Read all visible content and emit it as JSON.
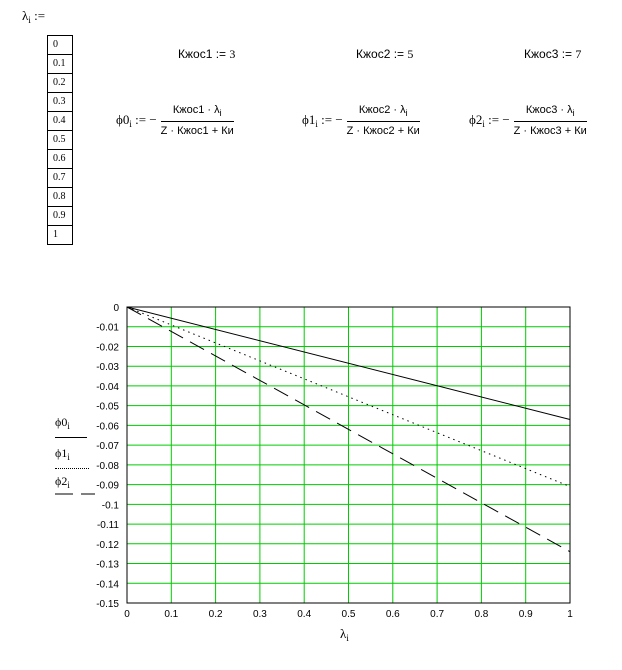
{
  "vector": {
    "header_symbol": "λ",
    "header_sub": "i",
    "header_assign": ":=",
    "values": [
      "0",
      "0.1",
      "0.2",
      "0.3",
      "0.4",
      "0.5",
      "0.6",
      "0.7",
      "0.8",
      "0.9",
      "1"
    ]
  },
  "constants": [
    {
      "name": "Кжос1",
      "assign": ":=",
      "value": "3"
    },
    {
      "name": "Кжос2",
      "assign": ":=",
      "value": "5"
    },
    {
      "name": "Кжос3",
      "assign": ":=",
      "value": "7"
    }
  ],
  "formulas": [
    {
      "lhs": "ϕ0",
      "sub": "i",
      "assign": ":=",
      "minus": "−",
      "num": "Кжос1 · λ",
      "num_sub": "i",
      "den": "Z · Кжос1 + Ки"
    },
    {
      "lhs": "ϕ1",
      "sub": "i",
      "assign": ":=",
      "minus": "−",
      "num": "Кжос2 · λ",
      "num_sub": "i",
      "den": "Z · Кжос2 + Ки"
    },
    {
      "lhs": "ϕ2",
      "sub": "i",
      "assign": ":=",
      "minus": "−",
      "num": "Кжос3 · λ",
      "num_sub": "i",
      "den": "Z · Кжос3 + Ки"
    }
  ],
  "chart_data": {
    "type": "line",
    "x": [
      0,
      1
    ],
    "xlim": [
      0,
      1
    ],
    "ylim": [
      -0.15,
      0
    ],
    "x_ticks": [
      "0",
      "0.1",
      "0.2",
      "0.3",
      "0.4",
      "0.5",
      "0.6",
      "0.7",
      "0.8",
      "0.9",
      "1"
    ],
    "y_ticks": [
      "0",
      "-0.01",
      "-0.02",
      "-0.03",
      "-0.04",
      "-0.05",
      "-0.06",
      "-0.07",
      "-0.08",
      "-0.09",
      "-0.1",
      "-0.11",
      "-0.12",
      "-0.13",
      "-0.14",
      "-0.15"
    ],
    "xlabel": "λ",
    "xlabel_sub": "i",
    "grid": true,
    "grid_color": "#00cc00",
    "series": [
      {
        "name": "ϕ0",
        "name_sub": "i",
        "style": "solid",
        "values": [
          0,
          -0.057
        ]
      },
      {
        "name": "ϕ1",
        "name_sub": "i",
        "style": "dotted",
        "values": [
          0,
          -0.091
        ]
      },
      {
        "name": "ϕ2",
        "name_sub": "i",
        "style": "dashed",
        "values": [
          0,
          -0.124
        ]
      }
    ]
  }
}
